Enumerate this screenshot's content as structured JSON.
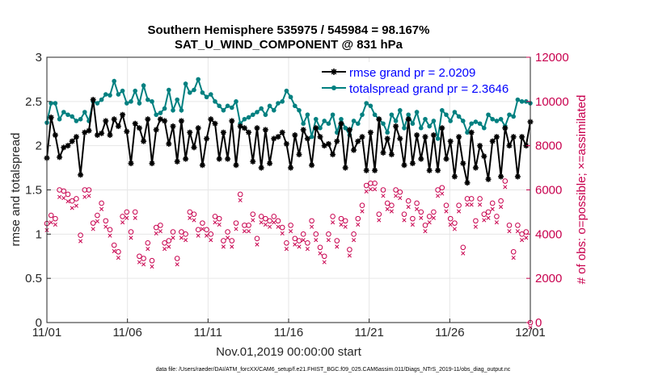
{
  "chart_data": {
    "type": "line",
    "title_line1": "Southern Hemisphere 535975 / 545984 = 98.167%",
    "title_line2": "SAT_U_WIND_COMPONENT @ 831 hPa",
    "xlabel": "Nov.01,2019 00:00:00 start",
    "ylabel_left": "rmse and totalspread",
    "ylabel_right": "# of obs: o=possible; ×=assimilated",
    "xlim": [
      0,
      30
    ],
    "ylim_left": [
      0,
      3
    ],
    "ylim_right": [
      0,
      12000
    ],
    "x_ticks": [
      0,
      5,
      10,
      15,
      20,
      25,
      30
    ],
    "x_tick_labels": [
      "11/01",
      "11/06",
      "11/11",
      "11/16",
      "11/21",
      "11/26",
      "12/01"
    ],
    "y_ticks_left": [
      0,
      0.5,
      1,
      1.5,
      2,
      2.5,
      3
    ],
    "y_tick_labels_left": [
      "0",
      "0.5",
      "1",
      "1.5",
      "2",
      "2.5",
      "3"
    ],
    "y_ticks_right": [
      0,
      2000,
      4000,
      6000,
      8000,
      10000,
      12000
    ],
    "y_tick_labels_right": [
      "0",
      "2000",
      "4000",
      "6000",
      "8000",
      "10000",
      "12000"
    ],
    "footer": "data file: /Users/raeder/DAI/ATM_forcXX/CAM6_setup/f.e21.FHIST_BGC.f09_025.CAM6assim.011/Diags_NTrS_2019-11/obs_diag_output.nc",
    "series": [
      {
        "name": "rmse grand pr = 2.0209",
        "color": "#000000",
        "marker": "asterisk",
        "values": [
          1.86,
          2.32,
          2.12,
          1.87,
          1.98,
          2.0,
          2.05,
          2.1,
          1.67,
          2.15,
          2.17,
          2.52,
          2.12,
          2.14,
          2.28,
          2.12,
          2.3,
          2.22,
          2.35,
          2.16,
          1.8,
          2.25,
          2.2,
          2.05,
          2.3,
          1.8,
          2.18,
          2.3,
          2.28,
          2.02,
          2.22,
          1.82,
          2.28,
          1.85,
          2.15,
          1.98,
          2.2,
          1.78,
          2.08,
          2.3,
          2.25,
          1.85,
          2.15,
          1.85,
          2.28,
          1.78,
          2.22,
          2.2,
          2.15,
          1.82,
          2.2,
          1.75,
          2.18,
          1.8,
          2.08,
          2.1,
          2.15,
          2.02,
          1.75,
          2.12,
          1.9,
          2.18,
          2.08,
          1.78,
          2.2,
          2.1,
          2.0,
          2.02,
          1.9,
          2.05,
          2.25,
          1.75,
          2.18,
          1.95,
          2.05,
          2.1,
          1.72,
          2.15,
          1.72,
          2.3,
          1.92,
          2.08,
          1.9,
          2.22,
          2.08,
          1.78,
          2.3,
          1.8,
          2.12,
          1.85,
          2.1,
          1.72,
          2.12,
          1.72,
          2.2,
          1.85,
          2.05,
          1.65,
          2.1,
          1.8,
          1.58,
          2.15,
          1.75,
          2.0,
          1.88,
          1.62,
          2.05,
          2.1,
          1.65,
          2.2,
          2.0,
          2.1,
          1.65,
          2.1,
          2.0,
          2.27
        ]
      },
      {
        "name": "totalspread grand pr = 2.3646",
        "color": "#008080",
        "marker": "dot",
        "values": [
          2.26,
          2.48,
          2.48,
          2.3,
          2.38,
          2.35,
          2.33,
          2.28,
          2.3,
          2.38,
          2.28,
          2.5,
          2.48,
          2.52,
          2.58,
          2.57,
          2.73,
          2.58,
          2.62,
          2.48,
          2.5,
          2.62,
          2.48,
          2.68,
          2.52,
          2.5,
          2.35,
          2.37,
          2.42,
          2.63,
          2.4,
          2.52,
          2.4,
          2.7,
          2.6,
          2.63,
          2.75,
          2.6,
          2.55,
          2.58,
          2.5,
          2.45,
          2.4,
          2.45,
          2.43,
          2.5,
          2.25,
          2.3,
          2.32,
          2.35,
          2.38,
          2.42,
          2.35,
          2.45,
          2.4,
          2.48,
          2.5,
          2.62,
          2.55,
          2.45,
          2.4,
          2.25,
          2.35,
          2.1,
          2.3,
          2.2,
          2.28,
          2.25,
          2.35,
          2.15,
          2.3,
          2.2,
          2.12,
          2.28,
          2.25,
          2.35,
          2.48,
          2.45,
          2.35,
          2.3,
          2.25,
          2.15,
          2.35,
          2.28,
          2.4,
          2.2,
          2.35,
          2.25,
          2.38,
          2.2,
          2.3,
          2.22,
          2.28,
          2.08,
          2.4,
          2.35,
          2.28,
          2.38,
          2.33,
          2.28,
          2.15,
          2.25,
          2.27,
          2.25,
          2.2,
          2.35,
          2.3,
          2.28,
          2.3,
          2.22,
          2.35,
          2.33,
          2.52,
          2.5,
          2.5,
          2.48
        ]
      },
      {
        "name": "# obs possible",
        "axis": "right",
        "color": "#c8004e",
        "marker": "circle",
        "values": [
          4480,
          4850,
          4700,
          6000,
          5950,
          5800,
          5500,
          5600,
          3950,
          6000,
          6000,
          4500,
          4850,
          5400,
          4600,
          4200,
          3500,
          3200,
          4800,
          5000,
          4100,
          5000,
          3000,
          2900,
          3600,
          2800,
          4300,
          4400,
          3600,
          3700,
          4100,
          2900,
          4100,
          4000,
          5000,
          4900,
          4200,
          4500,
          4200,
          4000,
          4800,
          4700,
          3700,
          4100,
          3700,
          4500,
          5800,
          4400,
          4400,
          4900,
          3800,
          4800,
          4700,
          4600,
          4800,
          4600,
          4300,
          3600,
          4400,
          3800,
          3700,
          4000,
          3600,
          4600,
          4000,
          3400,
          3000,
          4000,
          4800,
          3700,
          4700,
          4600,
          3300,
          4000,
          4700,
          5300,
          6200,
          6300,
          6300,
          4900,
          6000,
          5400,
          5300,
          6000,
          5900,
          4900,
          5500,
          4700,
          5400,
          5000,
          4400,
          4800,
          5000,
          6000,
          6100,
          5300,
          4700,
          4500,
          5300,
          3400,
          5600,
          5600,
          4600,
          5600,
          4900,
          5000,
          5400,
          4800,
          5500,
          6400,
          4400,
          3200,
          4400,
          4000,
          4100,
          0
        ]
      },
      {
        "name": "# obs assimilated",
        "axis": "right",
        "color": "#c8004e",
        "marker": "x",
        "values": [
          4400,
          4750,
          4650,
          5900,
          5850,
          5700,
          5400,
          5500,
          3900,
          5900,
          5950,
          4450,
          4800,
          5350,
          4550,
          4150,
          3450,
          3150,
          4750,
          4950,
          4050,
          4950,
          2950,
          2850,
          3550,
          2750,
          4250,
          4350,
          3550,
          3650,
          4050,
          2850,
          4050,
          3950,
          4950,
          4850,
          4150,
          4450,
          4150,
          3950,
          4750,
          4650,
          3650,
          4050,
          3650,
          4450,
          5750,
          4350,
          4350,
          4850,
          3750,
          4750,
          4650,
          4550,
          4750,
          4550,
          4250,
          3550,
          4350,
          3750,
          3650,
          3950,
          3550,
          4550,
          3950,
          3350,
          2950,
          3950,
          4750,
          3650,
          4650,
          4550,
          3250,
          3950,
          4650,
          5250,
          6150,
          6250,
          6250,
          4850,
          5950,
          5350,
          5250,
          5950,
          5850,
          4850,
          5450,
          4650,
          5350,
          4950,
          4350,
          4750,
          4950,
          5950,
          6050,
          5250,
          4650,
          4450,
          5250,
          3350,
          5550,
          5550,
          4550,
          5550,
          4850,
          4950,
          5350,
          4750,
          5450,
          6350,
          4350,
          3150,
          4350,
          3950,
          4050,
          0
        ]
      }
    ]
  }
}
